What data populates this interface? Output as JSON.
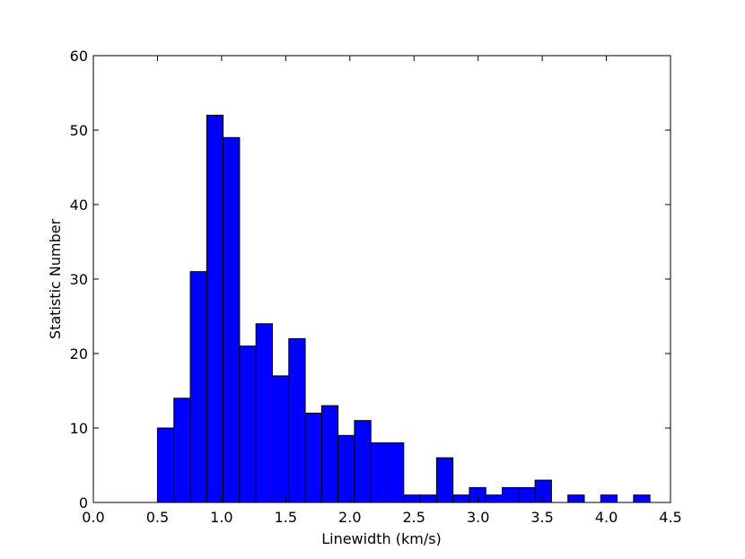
{
  "chart_data": {
    "type": "histogram",
    "xlabel": "Linewidth (km/s)",
    "ylabel": "Statistic Number",
    "color": "#0000ff",
    "bins": [
      0.5,
      0.628,
      0.756,
      0.884,
      1.012,
      1.14,
      1.268,
      1.396,
      1.524,
      1.652,
      1.78,
      1.908,
      2.036,
      2.164,
      2.292,
      2.42,
      2.548,
      2.676,
      2.804,
      2.932,
      3.06,
      3.188,
      3.316,
      3.444,
      3.572,
      3.7,
      3.828,
      3.956,
      4.084,
      4.212,
      4.34
    ],
    "values": [
      10,
      14,
      31,
      52,
      49,
      21,
      24,
      17,
      22,
      12,
      13,
      9,
      11,
      8,
      8,
      1,
      1,
      6,
      1,
      2,
      1,
      2,
      2,
      3,
      0,
      1,
      0,
      1,
      0,
      1
    ],
    "xlim": [
      0,
      4.5
    ],
    "xticks": [
      {
        "value": 0,
        "label": "0.0"
      },
      0.5,
      {
        "value": 1,
        "label": "1.0"
      },
      1.5,
      {
        "value": 2,
        "label": "2.0"
      },
      2.5,
      {
        "value": 3,
        "label": "3.0"
      },
      3.5,
      {
        "value": 4,
        "label": "4.0"
      },
      4.5
    ],
    "ylim": [
      0,
      60
    ],
    "yticks": [
      0,
      10,
      20,
      30,
      40,
      50,
      60
    ]
  }
}
